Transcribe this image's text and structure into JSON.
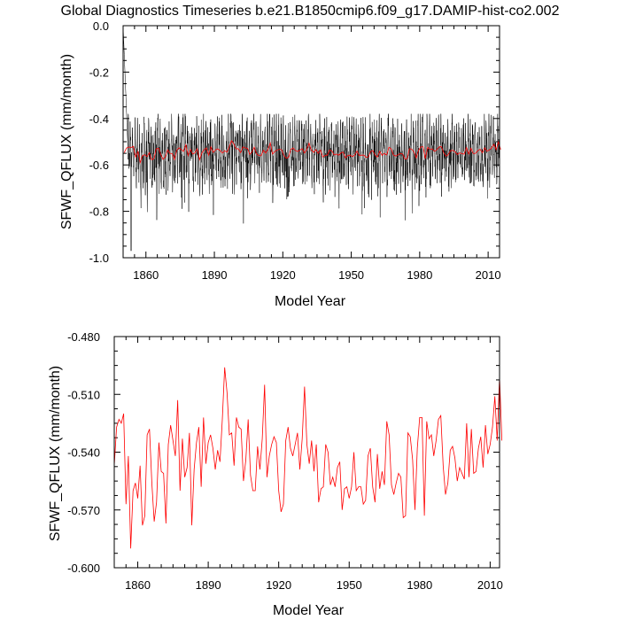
{
  "title": "Global Diagnostics Timeseries b.e21.B1850cmip6.f09_g17.DAMIP-hist-co2.002",
  "colors": {
    "monthly": "#000000",
    "annual": "#ff0000"
  },
  "chart_data": [
    {
      "type": "line",
      "xlabel": "Model Year",
      "ylabel": "SFWF_QFLUX (mm/month)",
      "xlim": [
        1850,
        2015
      ],
      "ylim": [
        -1.0,
        0.0
      ],
      "xticks": [
        1860,
        1890,
        1920,
        1950,
        1980,
        2010
      ],
      "xtick_labels": [
        "1860",
        "1890",
        "1920",
        "1950",
        "1980",
        "2010"
      ],
      "yticks": [
        0.0,
        -0.2,
        -0.4,
        -0.6,
        -0.8,
        -1.0
      ],
      "ytick_labels": [
        "0.0",
        "-0.2",
        "-0.4",
        "-0.6",
        "-0.8",
        "-1.0"
      ],
      "series": [
        {
          "color": "#000000",
          "description": "monthly values, spin-up from 0.0 at 1850 to about -0.45 by 1853, then oscillating roughly between -0.38 and -0.85 (minimum about -0.97 near 1853)",
          "start_value": 0.0,
          "settled_range": [
            -0.85,
            -0.38
          ],
          "min_value": -0.97,
          "max_value": 0.0
        },
        {
          "color": "#ff0000",
          "description": "annual mean overlay, same as lower panel",
          "values_ref": "lower_panel"
        }
      ]
    },
    {
      "type": "line",
      "xlabel": "Model Year",
      "ylabel": "SFWF_QFLUX (mm/month)",
      "xlim": [
        1850,
        2014
      ],
      "ylim": [
        -0.6,
        -0.48
      ],
      "xticks": [
        1860,
        1890,
        1920,
        1950,
        1980,
        2010
      ],
      "xtick_labels": [
        "1860",
        "1890",
        "1920",
        "1950",
        "1980",
        "2010"
      ],
      "yticks": [
        -0.48,
        -0.51,
        -0.54,
        -0.57,
        -0.6
      ],
      "ytick_labels": [
        "-0.480",
        "-0.510",
        "-0.540",
        "-0.570",
        "-0.600"
      ],
      "series": [
        {
          "color": "#ff0000",
          "x_start": 1850,
          "x_step": 1,
          "values": [
            -0.547,
            -0.527,
            -0.523,
            -0.525,
            -0.52,
            -0.567,
            -0.542,
            -0.59,
            -0.56,
            -0.556,
            -0.564,
            -0.547,
            -0.578,
            -0.573,
            -0.531,
            -0.528,
            -0.556,
            -0.576,
            -0.566,
            -0.535,
            -0.55,
            -0.551,
            -0.577,
            -0.536,
            -0.526,
            -0.534,
            -0.542,
            -0.513,
            -0.56,
            -0.533,
            -0.553,
            -0.548,
            -0.53,
            -0.578,
            -0.549,
            -0.535,
            -0.527,
            -0.558,
            -0.522,
            -0.546,
            -0.535,
            -0.531,
            -0.538,
            -0.549,
            -0.539,
            -0.545,
            -0.523,
            -0.496,
            -0.509,
            -0.531,
            -0.53,
            -0.547,
            -0.522,
            -0.527,
            -0.528,
            -0.555,
            -0.544,
            -0.523,
            -0.552,
            -0.56,
            -0.56,
            -0.537,
            -0.549,
            -0.533,
            -0.505,
            -0.553,
            -0.542,
            -0.536,
            -0.532,
            -0.535,
            -0.56,
            -0.571,
            -0.567,
            -0.534,
            -0.527,
            -0.538,
            -0.542,
            -0.536,
            -0.53,
            -0.549,
            -0.533,
            -0.506,
            -0.536,
            -0.546,
            -0.534,
            -0.55,
            -0.536,
            -0.566,
            -0.559,
            -0.558,
            -0.536,
            -0.54,
            -0.557,
            -0.553,
            -0.558,
            -0.548,
            -0.545,
            -0.57,
            -0.559,
            -0.558,
            -0.564,
            -0.558,
            -0.54,
            -0.56,
            -0.558,
            -0.558,
            -0.567,
            -0.565,
            -0.542,
            -0.538,
            -0.558,
            -0.566,
            -0.541,
            -0.559,
            -0.55,
            -0.557,
            -0.524,
            -0.531,
            -0.557,
            -0.562,
            -0.556,
            -0.551,
            -0.553,
            -0.574,
            -0.573,
            -0.53,
            -0.532,
            -0.544,
            -0.57,
            -0.538,
            -0.522,
            -0.522,
            -0.573,
            -0.524,
            -0.533,
            -0.531,
            -0.542,
            -0.534,
            -0.523,
            -0.521,
            -0.547,
            -0.562,
            -0.556,
            -0.539,
            -0.537,
            -0.543,
            -0.555,
            -0.548,
            -0.551,
            -0.554,
            -0.525,
            -0.553,
            -0.528,
            -0.551,
            -0.55,
            -0.538,
            -0.532,
            -0.548,
            -0.526,
            -0.541,
            -0.536,
            -0.527,
            -0.511,
            -0.534,
            -0.501,
            -0.534
          ]
        }
      ]
    }
  ]
}
